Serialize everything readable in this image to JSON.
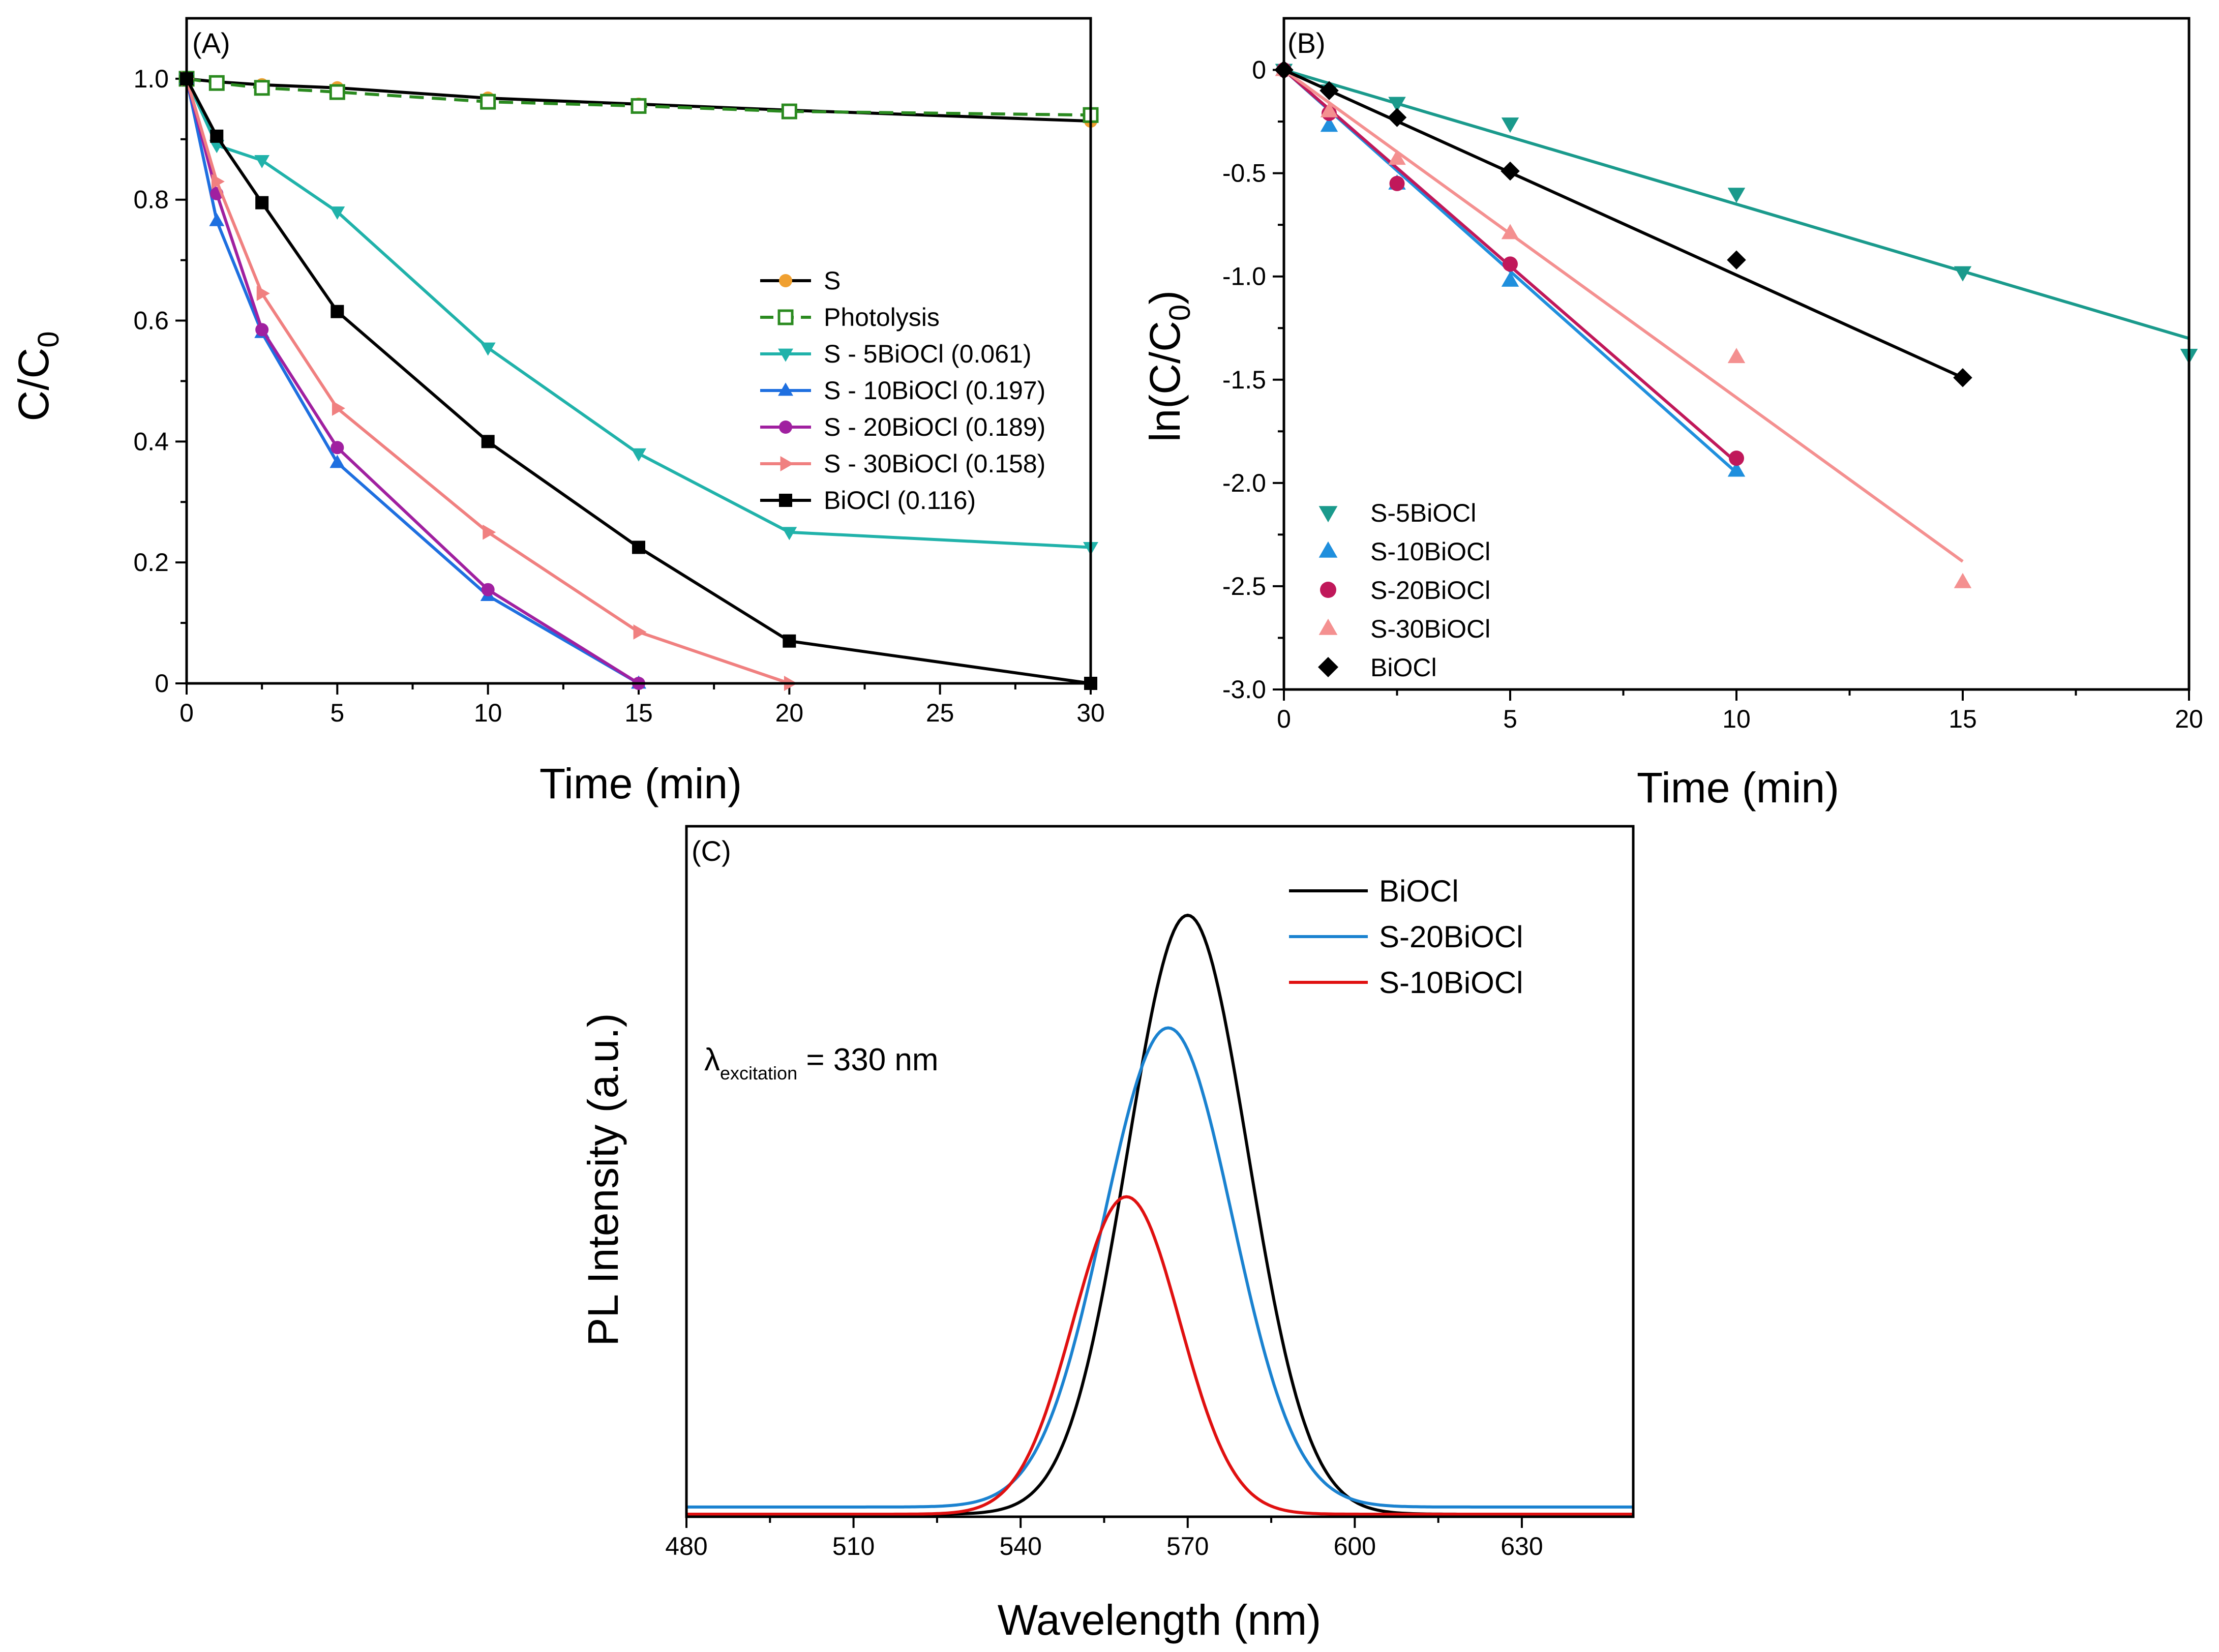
{
  "chart_data": [
    {
      "id": "A",
      "type": "line",
      "panel_label": "(A)",
      "xlabel": "Time (min)",
      "ylabel": "C/C",
      "ylabel_sub": "0",
      "xlim": [
        0,
        30
      ],
      "ylim": [
        0,
        1.1
      ],
      "xticks": [
        0,
        5,
        10,
        15,
        20,
        25,
        30
      ],
      "yticks": [
        0,
        0.2,
        0.4,
        0.6,
        0.8,
        1.0
      ],
      "ytick_labels": [
        "0",
        "0.2",
        "0.4",
        "0.6",
        "0.8",
        "1.0"
      ],
      "x": [
        0,
        1,
        2.5,
        5,
        10,
        15,
        20,
        30
      ],
      "series": [
        {
          "name": "S",
          "legend": "S",
          "color": "#000000",
          "marker": "circle",
          "marker_color": "#f0a030",
          "values": [
            1.0,
            0.995,
            0.99,
            0.985,
            0.968,
            0.958,
            0.948,
            0.93
          ]
        },
        {
          "name": "Photolysis",
          "legend": "Photolysis",
          "color": "#2a8a1f",
          "marker": "open-square",
          "dashed": true,
          "values": [
            1.0,
            0.993,
            0.985,
            0.978,
            0.962,
            0.955,
            0.946,
            0.94
          ]
        },
        {
          "name": "S-5BiOCl",
          "legend": "S - 5BiOCl  (0.061)",
          "color": "#20b2aa",
          "marker": "triangle-down",
          "values": [
            1.0,
            0.89,
            0.865,
            0.78,
            0.555,
            0.38,
            0.25,
            0.225
          ]
        },
        {
          "name": "S-10BiOCl",
          "legend": "S - 10BiOCl (0.197)",
          "color": "#1e6fe0",
          "marker": "triangle-up",
          "values": [
            1.0,
            0.765,
            0.58,
            0.365,
            0.145,
            0.0,
            null,
            null
          ]
        },
        {
          "name": "S-20BiOCl",
          "legend": "S - 20BiOCl  (0.189)",
          "color": "#a020a0",
          "marker": "circle",
          "values": [
            1.0,
            0.81,
            0.585,
            0.39,
            0.155,
            0.0,
            null,
            null
          ]
        },
        {
          "name": "S-30BiOCl",
          "legend": "S - 30BiOCl (0.158)",
          "color": "#f08080",
          "marker": "triangle-right",
          "values": [
            1.0,
            0.83,
            0.645,
            0.455,
            0.25,
            0.085,
            0.0,
            null
          ]
        },
        {
          "name": "BiOCl",
          "legend": "BiOCl (0.116)",
          "color": "#000000",
          "marker": "square",
          "values": [
            1.0,
            0.905,
            0.795,
            0.615,
            0.4,
            0.225,
            0.07,
            0.0
          ]
        }
      ]
    },
    {
      "id": "B",
      "type": "scatter",
      "panel_label": "(B)",
      "xlabel": "Time (min)",
      "ylabel": "ln(C/C",
      "ylabel_sub": "0",
      "ylabel_end": ")",
      "xlim": [
        0,
        20
      ],
      "ylim": [
        -3.0,
        0.25
      ],
      "xticks": [
        0,
        5,
        10,
        15,
        20
      ],
      "yticks": [
        0,
        -0.5,
        -1.0,
        -1.5,
        -2.0,
        -2.5,
        -3.0
      ],
      "ytick_labels": [
        "0",
        "-0.5",
        "-1.0",
        "-1.5",
        "-2.0",
        "-2.5",
        "-3.0"
      ],
      "series": [
        {
          "name": "S-5BiOCl",
          "color": "#1a9a8c",
          "marker": "triangle-down",
          "points": [
            [
              0,
              0
            ],
            [
              1,
              -0.1
            ],
            [
              2.5,
              -0.16
            ],
            [
              5,
              -0.26
            ],
            [
              10,
              -0.6
            ],
            [
              15,
              -0.98
            ],
            [
              20,
              -1.38
            ]
          ],
          "fit": [
            [
              0,
              0
            ],
            [
              20,
              -1.3
            ]
          ]
        },
        {
          "name": "S-10BiOCl",
          "color": "#1f8fdd",
          "marker": "triangle-up",
          "points": [
            [
              0,
              0
            ],
            [
              1,
              -0.27
            ],
            [
              2.5,
              -0.55
            ],
            [
              5,
              -1.02
            ],
            [
              10,
              -1.94
            ]
          ],
          "fit": [
            [
              0,
              0
            ],
            [
              10,
              -1.95
            ]
          ]
        },
        {
          "name": "S-20BiOCl",
          "color": "#c0185a",
          "marker": "circle",
          "points": [
            [
              0,
              0
            ],
            [
              1,
              -0.21
            ],
            [
              2.5,
              -0.55
            ],
            [
              5,
              -0.94
            ],
            [
              10,
              -1.88
            ]
          ],
          "fit": [
            [
              0,
              0
            ],
            [
              10,
              -1.9
            ]
          ]
        },
        {
          "name": "S-30BiOCl",
          "color": "#f49090",
          "marker": "triangle-up",
          "points": [
            [
              0,
              0
            ],
            [
              1,
              -0.2
            ],
            [
              2.5,
              -0.43
            ],
            [
              5,
              -0.79
            ],
            [
              10,
              -1.39
            ],
            [
              15,
              -2.48
            ]
          ],
          "fit": [
            [
              0,
              0
            ],
            [
              15,
              -2.38
            ]
          ]
        },
        {
          "name": "BiOCl",
          "color": "#000000",
          "marker": "diamond",
          "points": [
            [
              0,
              0
            ],
            [
              1,
              -0.1
            ],
            [
              2.5,
              -0.23
            ],
            [
              5,
              -0.49
            ],
            [
              10,
              -0.92
            ],
            [
              15,
              -1.49
            ]
          ],
          "fit": [
            [
              0,
              0
            ],
            [
              15,
              -1.49
            ]
          ]
        }
      ]
    },
    {
      "id": "C",
      "type": "line",
      "panel_label": "(C)",
      "xlabel": "Wavelength (nm)",
      "ylabel": "PL Intensity (a.u.)",
      "xlim": [
        480,
        650
      ],
      "ylim": [
        0,
        1
      ],
      "xticks": [
        480,
        510,
        540,
        570,
        600,
        630
      ],
      "annotation": {
        "symbol": "λ",
        "sub": "excitation",
        "text": " = 330 nm"
      },
      "series": [
        {
          "name": "BiOCl",
          "color": "#000000",
          "center": 570,
          "sigma": 10.8,
          "peak": 1.0,
          "baseline": 0.0
        },
        {
          "name": "S-20BiOCl",
          "color": "#1a82d0",
          "center": 566.5,
          "sigma": 11.5,
          "peak": 0.8,
          "baseline": 0.012
        },
        {
          "name": "S-10BiOCl",
          "color": "#e01010",
          "center": 559,
          "sigma": 9.6,
          "peak": 0.53,
          "baseline": 0.0
        }
      ]
    }
  ]
}
